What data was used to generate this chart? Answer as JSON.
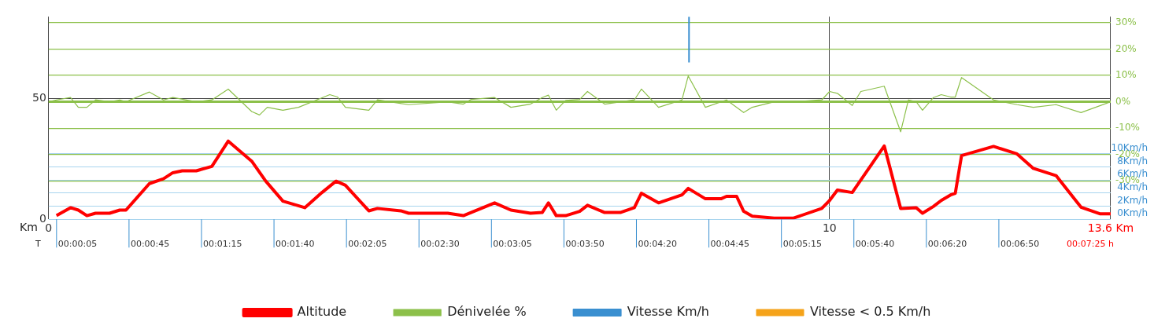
{
  "chart_data": {
    "type": "line",
    "xlabel": "Km",
    "xlim": [
      0,
      13.6
    ],
    "xticks": [
      0,
      10,
      {
        "value": 13.6,
        "label": "13.6 Km"
      }
    ],
    "annotations": [
      "T",
      "00:00:05",
      "00:00:45",
      "00:01:15",
      "00:01:40",
      "00:02:05",
      "00:02:30",
      "00:03:05",
      "00:03:50",
      "00:04:20",
      "00:04:45",
      "00:05:15",
      "00:05:40",
      "00:06:20",
      "00:06:50",
      "00:07:25 h"
    ],
    "ref_lines": [
      {
        "axis": "y2",
        "value": 0,
        "color": "#8cc04a"
      }
    ],
    "ylim": [
      0,
      84
    ],
    "yticks": [
      0,
      50
    ],
    "y2lim": [
      -44.6,
      32.3
    ],
    "y2ticks": [
      {
        "value": 30,
        "label": "30%"
      },
      {
        "value": 20,
        "label": "20%"
      },
      {
        "value": 10,
        "label": "10%"
      },
      {
        "value": 0,
        "label": "0%"
      },
      {
        "value": -10,
        "label": "-10%"
      },
      {
        "value": -20,
        "label": "-20%"
      },
      {
        "value": -30,
        "label": "-30%"
      }
    ],
    "y3lim": [
      0,
      31
    ],
    "y3ticks": [
      {
        "value": 0,
        "label": "0Km/h"
      },
      {
        "value": 2,
        "label": "2Km/h"
      },
      {
        "value": 4,
        "label": "4Km/h"
      },
      {
        "value": 6,
        "label": "6Km/h"
      },
      {
        "value": 8,
        "label": "8Km/h"
      },
      {
        "value": 10,
        "label": "10Km/h"
      }
    ],
    "grid": true,
    "legend": "bottom",
    "series": [
      {
        "name": "Altitude",
        "color": "#ff0000",
        "x": [
          0.1,
          0.28,
          0.38,
          0.49,
          0.6,
          0.78,
          0.91,
          0.99,
          1.29,
          1.47,
          1.59,
          1.71,
          1.89,
          2.09,
          2.3,
          2.6,
          2.78,
          3.0,
          3.28,
          3.5,
          3.68,
          3.8,
          4.1,
          4.21,
          4.51,
          4.61,
          5.11,
          5.31,
          5.71,
          5.92,
          6.17,
          6.32,
          6.4,
          6.5,
          6.62,
          6.8,
          6.9,
          7.12,
          7.32,
          7.5,
          7.59,
          7.81,
          8.11,
          8.19,
          8.41,
          8.61,
          8.68,
          8.81,
          8.9,
          9.01,
          9.29,
          9.54,
          9.9,
          10.0,
          10.1,
          10.29,
          10.7,
          10.91,
          11.11,
          11.19,
          11.33,
          11.43,
          11.55,
          11.61,
          11.69,
          12.1,
          12.4,
          12.61,
          12.9,
          13.22,
          13.46,
          13.6
        ],
        "values": [
          1.5,
          4.8,
          3.8,
          1.5,
          2.5,
          2.5,
          3.8,
          3.8,
          14.8,
          16.8,
          19.3,
          20.1,
          20.1,
          21.9,
          32.4,
          24.1,
          15.8,
          7.5,
          4.8,
          11.1,
          15.8,
          14.1,
          3.5,
          4.5,
          3.5,
          2.5,
          2.5,
          1.5,
          6.8,
          3.8,
          2.5,
          2.8,
          6.8,
          1.5,
          1.5,
          3.3,
          5.8,
          2.8,
          2.8,
          4.8,
          10.8,
          6.8,
          10.1,
          12.8,
          8.5,
          8.5,
          9.5,
          9.5,
          3.3,
          1.3,
          0.5,
          0.5,
          4.5,
          7.8,
          12.1,
          11.1,
          30.4,
          4.5,
          4.8,
          2.5,
          5.3,
          7.8,
          10.1,
          10.8,
          26.4,
          30.2,
          27.1,
          21.1,
          18.1,
          5.0,
          2.3,
          2.3
        ]
      },
      {
        "name": "Dénivelée %",
        "axis": "y2",
        "color": "#8cc04a",
        "x": [
          0,
          0.1,
          0.28,
          0.38,
          0.49,
          0.6,
          0.78,
          0.91,
          0.99,
          1.29,
          1.47,
          1.59,
          1.89,
          2.09,
          2.3,
          2.6,
          2.7,
          2.8,
          3.0,
          3.2,
          3.6,
          3.7,
          3.8,
          4.1,
          4.21,
          4.61,
          5.11,
          5.31,
          5.41,
          5.71,
          5.92,
          6.17,
          6.32,
          6.4,
          6.5,
          6.62,
          6.8,
          6.9,
          7.12,
          7.5,
          7.59,
          7.81,
          8.11,
          8.19,
          8.41,
          8.68,
          8.9,
          9.01,
          9.29,
          9.54,
          9.9,
          10.0,
          10.1,
          10.29,
          10.4,
          10.7,
          10.91,
          11.01,
          11.11,
          11.19,
          11.33,
          11.43,
          11.55,
          11.61,
          11.69,
          12.1,
          12.4,
          12.61,
          12.9,
          13.22,
          13.6
        ],
        "values": [
          0,
          0.7,
          1.6,
          -2.1,
          -2.1,
          0.7,
          0,
          0.7,
          0,
          3.7,
          0.7,
          1.6,
          0,
          0.7,
          4.8,
          -3.7,
          -5.0,
          -2.1,
          -3.2,
          -2.1,
          2.7,
          1.8,
          -2.1,
          -3.2,
          0.7,
          -1.1,
          0,
          -0.9,
          0.9,
          1.6,
          -2.1,
          -0.9,
          1.6,
          2.5,
          -3.2,
          0.5,
          0.9,
          3.9,
          -0.9,
          0.7,
          4.8,
          -2.1,
          0.7,
          9.8,
          -2.1,
          0.7,
          -4.1,
          -2.1,
          0,
          0,
          0.7,
          3.9,
          3.2,
          -1.4,
          3.9,
          5.9,
          -11.4,
          0.7,
          0,
          -3.2,
          1.6,
          2.7,
          1.8,
          1.8,
          9.2,
          0.7,
          -1.1,
          -2.1,
          -1.1,
          -4.1,
          0
        ]
      },
      {
        "name": "Vitesse Km/h",
        "axis": "y3",
        "color": "#3a8fd0",
        "x": [
          8.2,
          8.2
        ],
        "values": [
          24,
          31
        ]
      },
      {
        "name": "Vitesse < 0.5 Km/h",
        "type": "scatter",
        "axis": "y3",
        "color": "#f5a31a"
      }
    ]
  }
}
